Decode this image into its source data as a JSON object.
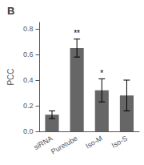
{
  "chart_data": {
    "type": "bar",
    "title": "B",
    "ylabel": "PCC",
    "categories": [
      "siRNA",
      "Puretube",
      "Iso-M",
      "Iso-S"
    ],
    "values": [
      0.13,
      0.65,
      0.32,
      0.28
    ],
    "errors": [
      0.03,
      0.07,
      0.09,
      0.12
    ],
    "annotations": [
      null,
      "**",
      "*",
      null
    ],
    "color": "#666666",
    "ylim": [
      0,
      0.85
    ],
    "yticks": [
      {
        "value": 0,
        "label": "0.0"
      },
      0.2,
      0.4,
      0.6,
      0.8
    ],
    "grid": false
  }
}
